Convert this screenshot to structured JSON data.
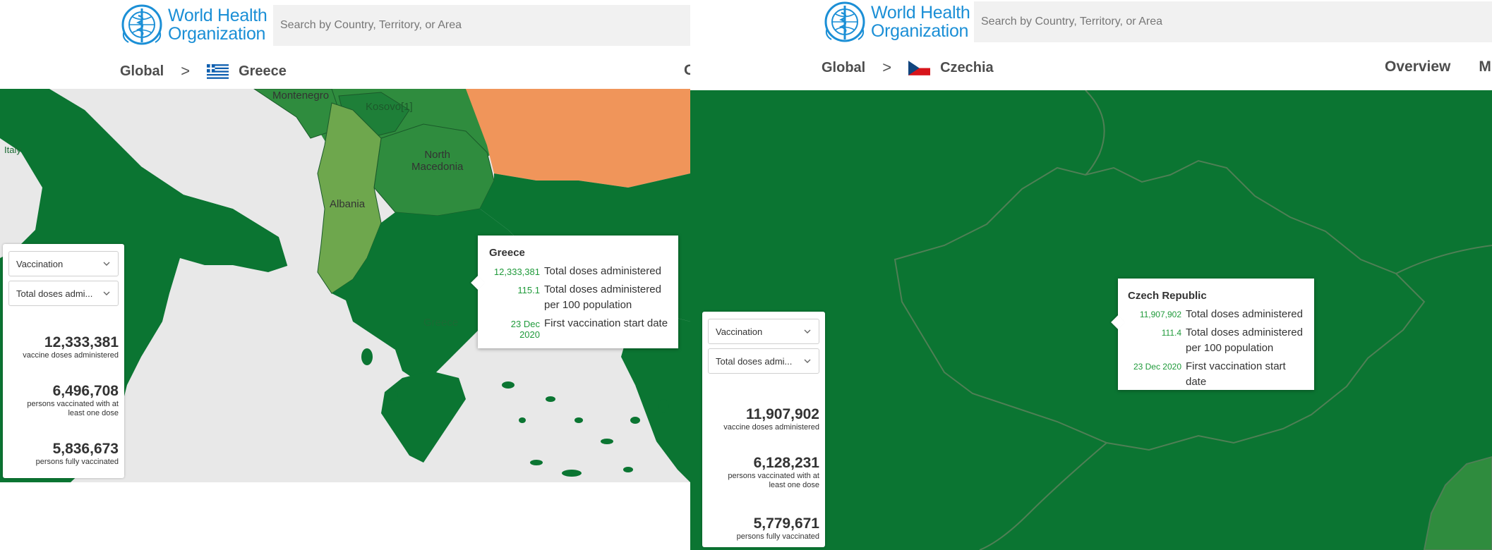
{
  "colors": {
    "who_blue": "#1b8fd6",
    "dark_green": "#0b7532",
    "mid_green": "#2f8c3e",
    "light_green": "#6ea74d",
    "orange": "#f0955a",
    "sea": "#e8e8e8",
    "value_green": "#1f9a3a"
  },
  "left": {
    "logo": {
      "line1": "World Health",
      "line2": "Organization",
      "icon": "who-emblem"
    },
    "search": {
      "placeholder": "Search by Country, Territory, or Area"
    },
    "breadcrumb": {
      "global": "Global",
      "separator": ">",
      "country": "Greece",
      "flag": "greece-flag"
    },
    "nav_partial": "O",
    "map_labels": {
      "montenegro": "Montenegro",
      "kosovo": "Kosovo[1]",
      "north_macedonia": "North\nMacedonia",
      "albania": "Albania",
      "greece": "Greece",
      "italy_fragment": "Italy"
    },
    "panel": {
      "dropdown1": "Vaccination",
      "dropdown2": "Total doses admi...",
      "stats": [
        {
          "value": "12,333,381",
          "label": "vaccine doses administered"
        },
        {
          "value": "6,496,708",
          "label": "persons vaccinated with at least one dose"
        },
        {
          "value": "5,836,673",
          "label": "persons fully vaccinated"
        }
      ]
    },
    "tooltip": {
      "title": "Greece",
      "rows": [
        {
          "value": "12,333,381",
          "desc": "Total doses administered"
        },
        {
          "value": "115.1",
          "desc": "Total doses administered per 100 population"
        },
        {
          "value": "23 Dec 2020",
          "desc": "First vaccination start date"
        }
      ]
    }
  },
  "right": {
    "logo": {
      "line1": "World Health",
      "line2": "Organization",
      "icon": "who-emblem"
    },
    "search": {
      "placeholder": "Search by Country, Territory, or Area"
    },
    "breadcrumb": {
      "global": "Global",
      "separator": ">",
      "country": "Czechia",
      "flag": "czechia-flag"
    },
    "nav": {
      "overview": "Overview",
      "partial": "M"
    },
    "panel": {
      "dropdown1": "Vaccination",
      "dropdown2": "Total doses admi...",
      "stats": [
        {
          "value": "11,907,902",
          "label": "vaccine doses administered"
        },
        {
          "value": "6,128,231",
          "label": "persons vaccinated with at least one dose"
        },
        {
          "value": "5,779,671",
          "label": "persons fully vaccinated"
        }
      ]
    },
    "tooltip": {
      "title": "Czech Republic",
      "rows": [
        {
          "value": "11,907,902",
          "desc": "Total doses administered"
        },
        {
          "value": "111.4",
          "desc": "Total doses administered per 100 population"
        },
        {
          "value": "23 Dec 2020",
          "desc": "First vaccination start date"
        }
      ]
    }
  }
}
